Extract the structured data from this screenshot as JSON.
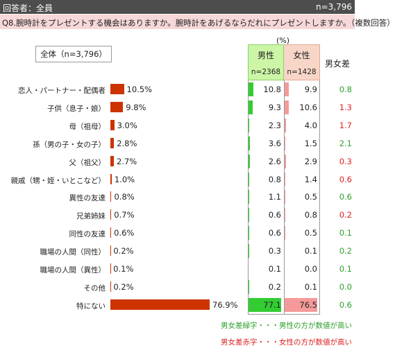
{
  "header": {
    "respondents_label": "回答者：全員",
    "n_total": "n=3,796",
    "question": "Q8.腕時計をプレゼントする機会はありますか。腕時計をあげるならだれにプレゼントしますか。（複数回答）"
  },
  "unit_label": "(%)",
  "total_box_label": "全体（n=3,796）",
  "columns": {
    "male": {
      "label": "男性",
      "n": "n=2368"
    },
    "female": {
      "label": "女性",
      "n": "n=1428"
    },
    "diff": {
      "label": "男女差"
    }
  },
  "legend": {
    "green_note": "男女差緑字・・・男性の方が数値が高い",
    "red_note": "男女差赤字・・・女性の方が数値が高い"
  },
  "colors": {
    "total_bar": "#cc3300",
    "male_bar": "#33cc33",
    "female_bar": "#f59a9a",
    "male_header": "#ccf5a6",
    "female_header": "#f7d6c7",
    "diff_male_higher": "#2ca02c",
    "diff_female_higher": "#dd2222"
  },
  "chart_data": {
    "type": "bar",
    "orientation": "horizontal",
    "xlim": [
      0,
      100
    ],
    "categories": [
      "恋人・パートナー・配偶者",
      "子供（息子・娘）",
      "母（祖母）",
      "孫（男の子・女の子）",
      "父（祖父）",
      "親戚（甥・姪・いとこなど）",
      "異性の友達",
      "兄弟姉妹",
      "同性の友達",
      "職場の人間（同性）",
      "職場の人間（異性）",
      "その他",
      "特にない"
    ],
    "series": [
      {
        "name": "全体",
        "values": [
          10.5,
          9.8,
          3.0,
          2.8,
          2.7,
          1.0,
          0.8,
          0.7,
          0.6,
          0.2,
          0.1,
          0.2,
          76.9
        ],
        "labels": [
          "10.5%",
          "9.8%",
          "3.0%",
          "2.8%",
          "2.7%",
          "1.0%",
          "0.8%",
          "0.7%",
          "0.6%",
          "0.2%",
          "0.1%",
          "0.2%",
          "76.9%"
        ]
      },
      {
        "name": "男性",
        "values": [
          10.8,
          9.3,
          2.3,
          3.6,
          2.6,
          0.8,
          1.1,
          0.6,
          0.6,
          0.3,
          0.1,
          0.2,
          77.1
        ],
        "labels": [
          "10.8",
          "9.3",
          "2.3",
          "3.6",
          "2.6",
          "0.8",
          "1.1",
          "0.6",
          "0.6",
          "0.3",
          "0.1",
          "0.2",
          "77.1"
        ]
      },
      {
        "name": "女性",
        "values": [
          9.9,
          10.6,
          4.0,
          1.5,
          2.9,
          1.4,
          0.5,
          0.8,
          0.5,
          0.1,
          0.0,
          0.1,
          76.5
        ],
        "labels": [
          "9.9",
          "10.6",
          "4.0",
          "1.5",
          "2.9",
          "1.4",
          "0.5",
          "0.8",
          "0.5",
          "0.1",
          "0.0",
          "0.1",
          "76.5"
        ]
      },
      {
        "name": "男女差",
        "values": [
          0.8,
          1.3,
          1.7,
          2.1,
          0.3,
          0.6,
          0.6,
          0.2,
          0.1,
          0.2,
          0.1,
          0.0,
          0.6
        ],
        "labels": [
          "0.8",
          "1.3",
          "1.7",
          "2.1",
          "0.3",
          "0.6",
          "0.6",
          "0.2",
          "0.1",
          "0.2",
          "0.1",
          "0.0",
          "0.6"
        ],
        "higher": [
          "male",
          "female",
          "female",
          "male",
          "female",
          "female",
          "male",
          "female",
          "male",
          "male",
          "male",
          "male",
          "male"
        ]
      }
    ]
  }
}
